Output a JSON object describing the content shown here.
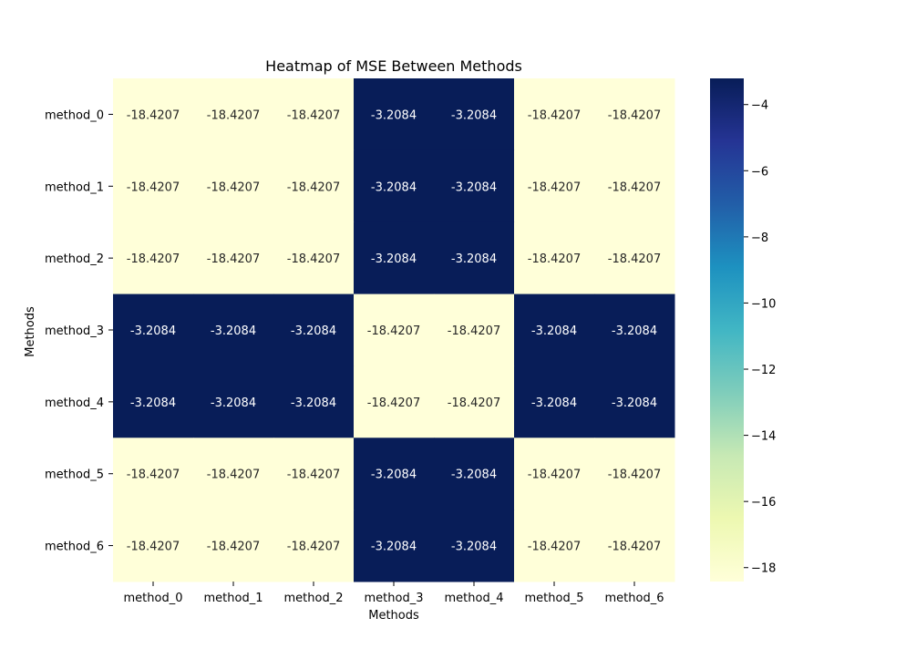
{
  "chart_data": {
    "type": "heatmap",
    "title": "Heatmap of MSE Between Methods",
    "xlabel": "Methods",
    "ylabel": "Methods",
    "x_categories": [
      "method_0",
      "method_1",
      "method_2",
      "method_3",
      "method_4",
      "method_5",
      "method_6"
    ],
    "y_categories": [
      "method_0",
      "method_1",
      "method_2",
      "method_3",
      "method_4",
      "method_5",
      "method_6"
    ],
    "values": [
      [
        -18.4207,
        -18.4207,
        -18.4207,
        -3.2084,
        -3.2084,
        -18.4207,
        -18.4207
      ],
      [
        -18.4207,
        -18.4207,
        -18.4207,
        -3.2084,
        -3.2084,
        -18.4207,
        -18.4207
      ],
      [
        -18.4207,
        -18.4207,
        -18.4207,
        -3.2084,
        -3.2084,
        -18.4207,
        -18.4207
      ],
      [
        -3.2084,
        -3.2084,
        -3.2084,
        -18.4207,
        -18.4207,
        -3.2084,
        -3.2084
      ],
      [
        -3.2084,
        -3.2084,
        -3.2084,
        -18.4207,
        -18.4207,
        -3.2084,
        -3.2084
      ],
      [
        -18.4207,
        -18.4207,
        -18.4207,
        -3.2084,
        -3.2084,
        -18.4207,
        -18.4207
      ],
      [
        -18.4207,
        -18.4207,
        -18.4207,
        -3.2084,
        -3.2084,
        -18.4207,
        -18.4207
      ]
    ],
    "annotations": [
      [
        "-18.4207",
        "-18.4207",
        "-18.4207",
        "-3.2084",
        "-3.2084",
        "-18.4207",
        "-18.4207"
      ],
      [
        "-18.4207",
        "-18.4207",
        "-18.4207",
        "-3.2084",
        "-3.2084",
        "-18.4207",
        "-18.4207"
      ],
      [
        "-18.4207",
        "-18.4207",
        "-18.4207",
        "-3.2084",
        "-3.2084",
        "-18.4207",
        "-18.4207"
      ],
      [
        "-3.2084",
        "-3.2084",
        "-3.2084",
        "-18.4207",
        "-18.4207",
        "-3.2084",
        "-3.2084"
      ],
      [
        "-3.2084",
        "-3.2084",
        "-3.2084",
        "-18.4207",
        "-18.4207",
        "-3.2084",
        "-3.2084"
      ],
      [
        "-18.4207",
        "-18.4207",
        "-18.4207",
        "-3.2084",
        "-3.2084",
        "-18.4207",
        "-18.4207"
      ],
      [
        "-18.4207",
        "-18.4207",
        "-18.4207",
        "-3.2084",
        "-3.2084",
        "-18.4207",
        "-18.4207"
      ]
    ],
    "colorbar": {
      "vmin": -18.4207,
      "vmax": -3.2084,
      "ticks": [
        -4,
        -6,
        -8,
        -10,
        -12,
        -14,
        -16,
        -18
      ],
      "tick_labels": [
        "−4",
        "−6",
        "−8",
        "−10",
        "−12",
        "−14",
        "−16",
        "−18"
      ],
      "colormap": "YlGnBu",
      "color_stops": [
        "#ffffd9",
        "#edf8b1",
        "#c7e9b4",
        "#7fcdbb",
        "#41b6c4",
        "#1d91c0",
        "#225ea8",
        "#253494",
        "#081d58"
      ]
    },
    "grid": false,
    "text_colors": {
      "on_light": "#262626",
      "on_dark": "#ffffff"
    }
  }
}
